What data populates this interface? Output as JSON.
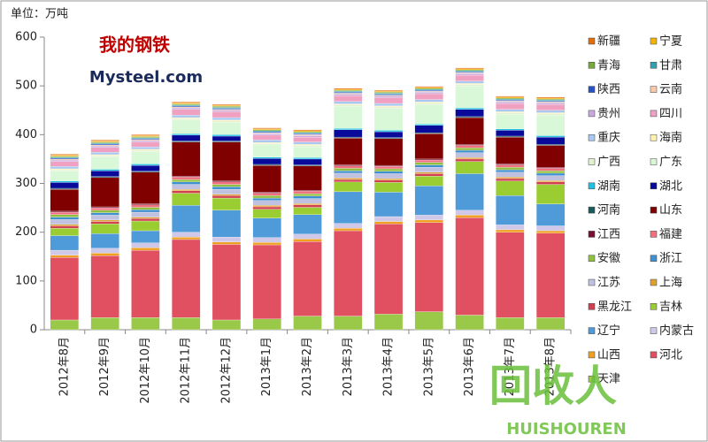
{
  "chart_data": {
    "type": "stacked-bar",
    "unit_label": "单位：万吨",
    "watermarks": [
      "我的钢铁",
      "Mysteel.com",
      "回收人",
      "HUISHOUREN"
    ],
    "categories": [
      "2012年8月",
      "2012年9月",
      "2012年10月",
      "2012年11月",
      "2012年12月",
      "2013年1月",
      "2013年2月",
      "2013年3月",
      "2013年4月",
      "2013年5月",
      "2013年6月",
      "2013年7月",
      "2013年8月"
    ],
    "ylim": [
      0,
      600
    ],
    "yticks": [
      0,
      100,
      200,
      300,
      400,
      500,
      600
    ],
    "series": [
      {
        "name": "新疆",
        "color": "#e46c0a",
        "values": [
          2,
          2,
          2,
          2,
          2,
          2,
          2,
          2,
          2,
          2,
          2,
          2,
          2
        ]
      },
      {
        "name": "宁夏",
        "color": "#f2b400",
        "values": [
          2,
          2,
          2,
          2,
          2,
          2,
          2,
          2,
          2,
          2,
          2,
          2,
          2
        ]
      },
      {
        "name": "青海",
        "color": "#77a83a",
        "values": [
          2,
          2,
          2,
          2,
          2,
          2,
          2,
          2,
          2,
          2,
          2,
          2,
          2
        ]
      },
      {
        "name": "甘肃",
        "color": "#31a0b0",
        "values": [
          2,
          2,
          2,
          2,
          2,
          2,
          2,
          2,
          2,
          2,
          2,
          2,
          2
        ]
      },
      {
        "name": "陕西",
        "color": "#2a52c8",
        "values": [
          2,
          2,
          2,
          2,
          2,
          2,
          2,
          2,
          2,
          2,
          2,
          2,
          2
        ]
      },
      {
        "name": "云南",
        "color": "#f8c9a8",
        "values": [
          2,
          2,
          2,
          2,
          2,
          2,
          2,
          2,
          2,
          2,
          2,
          2,
          2
        ]
      },
      {
        "name": "贵州",
        "color": "#c9a8e0",
        "values": [
          3,
          3,
          3,
          3,
          3,
          3,
          3,
          3,
          3,
          3,
          3,
          3,
          3
        ]
      },
      {
        "name": "四川",
        "color": "#f0a0c0",
        "values": [
          10,
          10,
          10,
          12,
          12,
          10,
          10,
          12,
          12,
          12,
          12,
          12,
          12
        ]
      },
      {
        "name": "重庆",
        "color": "#a8c8f0",
        "values": [
          5,
          5,
          5,
          5,
          5,
          5,
          5,
          5,
          5,
          5,
          5,
          5,
          5
        ]
      },
      {
        "name": "海南",
        "color": "#fff2b0",
        "values": [
          2,
          2,
          2,
          2,
          2,
          2,
          2,
          2,
          2,
          2,
          2,
          2,
          2
        ]
      },
      {
        "name": "广西",
        "color": "#e0f2d0",
        "values": [
          3,
          3,
          3,
          3,
          3,
          3,
          3,
          3,
          3,
          3,
          3,
          3,
          3
        ]
      },
      {
        "name": "广东",
        "color": "#d8f8d8",
        "values": [
          20,
          25,
          25,
          28,
          25,
          25,
          22,
          45,
          45,
          40,
          45,
          30,
          42
        ]
      },
      {
        "name": "湖南",
        "color": "#20c0e0",
        "values": [
          3,
          3,
          3,
          3,
          3,
          3,
          3,
          3,
          3,
          3,
          3,
          3,
          3
        ]
      },
      {
        "name": "湖北",
        "color": "#0a0a9a",
        "values": [
          12,
          12,
          12,
          12,
          10,
          12,
          12,
          15,
          12,
          15,
          15,
          12,
          15
        ]
      },
      {
        "name": "河南",
        "color": "#1a5a5a",
        "values": [
          2,
          2,
          2,
          2,
          2,
          2,
          2,
          2,
          2,
          2,
          2,
          2,
          2
        ]
      },
      {
        "name": "山东",
        "color": "#800000",
        "values": [
          45,
          60,
          65,
          70,
          80,
          55,
          50,
          55,
          55,
          52,
          55,
          55,
          45
        ]
      },
      {
        "name": "江西",
        "color": "#7a1030",
        "values": [
          2,
          2,
          2,
          2,
          2,
          2,
          2,
          2,
          2,
          2,
          2,
          2,
          2
        ]
      },
      {
        "name": "福建",
        "color": "#f07080",
        "values": [
          5,
          5,
          5,
          5,
          5,
          5,
          5,
          5,
          5,
          5,
          5,
          5,
          5
        ]
      },
      {
        "name": "安徽",
        "color": "#90c040",
        "values": [
          5,
          5,
          5,
          5,
          5,
          5,
          5,
          5,
          5,
          5,
          5,
          5,
          5
        ]
      },
      {
        "name": "浙江",
        "color": "#4090d0",
        "values": [
          5,
          5,
          5,
          5,
          5,
          5,
          5,
          5,
          5,
          5,
          5,
          5,
          5
        ]
      },
      {
        "name": "江苏",
        "color": "#c0c0e0",
        "values": [
          10,
          10,
          10,
          10,
          10,
          10,
          10,
          10,
          10,
          10,
          10,
          10,
          10
        ]
      },
      {
        "name": "上海",
        "color": "#e0a030",
        "values": [
          3,
          3,
          3,
          3,
          3,
          3,
          3,
          3,
          3,
          3,
          3,
          3,
          3
        ]
      },
      {
        "name": "黑龙江",
        "color": "#d04050",
        "values": [
          5,
          5,
          5,
          5,
          5,
          5,
          5,
          5,
          5,
          5,
          5,
          5,
          5
        ]
      },
      {
        "name": "吉林",
        "color": "#9acd32",
        "values": [
          15,
          20,
          20,
          25,
          25,
          18,
          15,
          20,
          20,
          20,
          25,
          30,
          40
        ]
      },
      {
        "name": "辽宁",
        "color": "#4f9ad8",
        "values": [
          30,
          30,
          25,
          55,
          55,
          40,
          40,
          65,
          50,
          60,
          75,
          60,
          45
        ]
      },
      {
        "name": "内蒙古",
        "color": "#d0c8e8",
        "values": [
          10,
          10,
          10,
          10,
          10,
          10,
          10,
          10,
          10,
          10,
          10,
          10,
          10
        ]
      },
      {
        "name": "山西",
        "color": "#f0a020",
        "values": [
          5,
          5,
          5,
          5,
          5,
          5,
          5,
          5,
          5,
          5,
          5,
          5,
          5
        ]
      },
      {
        "name": "河北",
        "color": "#e05060",
        "values": [
          128,
          127,
          138,
          160,
          155,
          152,
          153,
          175,
          185,
          183,
          200,
          175,
          173
        ]
      },
      {
        "name": "天津",
        "color": "#9ac848",
        "values": [
          20,
          25,
          25,
          25,
          20,
          22,
          28,
          28,
          32,
          37,
          30,
          25,
          25
        ]
      }
    ]
  }
}
